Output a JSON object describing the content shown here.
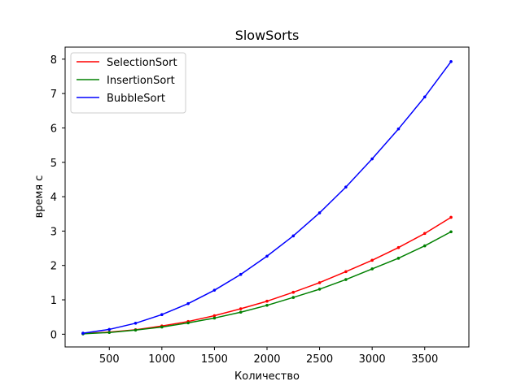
{
  "chart_data": {
    "type": "line",
    "title": "SlowSorts",
    "xlabel": "Количество",
    "ylabel": "время с",
    "xlim": [
      80,
      3920
    ],
    "ylim": [
      -0.37,
      8.35
    ],
    "xticks": [
      500,
      1000,
      1500,
      2000,
      2500,
      3000,
      3500
    ],
    "yticks": [
      0,
      1,
      2,
      3,
      4,
      5,
      6,
      7,
      8
    ],
    "grid": false,
    "legend_position": "top-left",
    "x": [
      250,
      500,
      750,
      1000,
      1250,
      1500,
      1750,
      2000,
      2250,
      2500,
      2750,
      3000,
      3250,
      3500,
      3750
    ],
    "series": [
      {
        "name": "SelectionSort",
        "color": "#ff0000",
        "values": [
          0.02,
          0.06,
          0.13,
          0.24,
          0.37,
          0.54,
          0.74,
          0.96,
          1.22,
          1.5,
          1.82,
          2.15,
          2.52,
          2.93,
          3.4
        ]
      },
      {
        "name": "InsertionSort",
        "color": "#008000",
        "values": [
          0.01,
          0.05,
          0.12,
          0.21,
          0.33,
          0.47,
          0.64,
          0.84,
          1.07,
          1.31,
          1.59,
          1.9,
          2.21,
          2.57,
          2.98
        ]
      },
      {
        "name": "BubbleSort",
        "color": "#0000ff",
        "values": [
          0.03,
          0.14,
          0.32,
          0.57,
          0.89,
          1.28,
          1.74,
          2.27,
          2.86,
          3.53,
          4.28,
          5.1,
          5.97,
          6.9,
          7.93
        ]
      }
    ]
  }
}
